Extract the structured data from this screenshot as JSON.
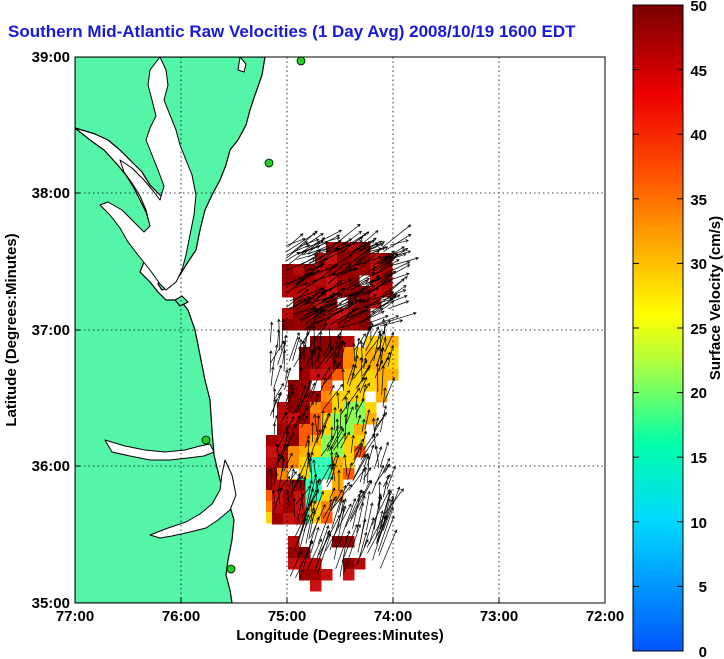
{
  "title": "Southern Mid-Atlantic Raw Velocities (1 Day Avg) 2008/10/19 1600 EDT",
  "map": {
    "xlabel": "Longitude (Degrees:Minutes)",
    "ylabel": "Latitude (Degrees:Minutes)",
    "x_ticks": [
      "77:00",
      "76:00",
      "75:00",
      "74:00",
      "73:00",
      "72:00"
    ],
    "y_ticks": [
      "39:00",
      "38:00",
      "37:00",
      "36:00",
      "35:00"
    ],
    "land_color": "#55f5a8",
    "land_edge_color": "#000000",
    "bathymetry_color": "#8c8c8c",
    "station_color": "#22cc22"
  },
  "colorbar": {
    "label": "Surface Velocity (cm/s)",
    "min": 0,
    "max": 50,
    "ticks": [
      "0",
      "5",
      "10",
      "15",
      "20",
      "25",
      "30",
      "35",
      "40",
      "45",
      "50"
    ]
  }
}
